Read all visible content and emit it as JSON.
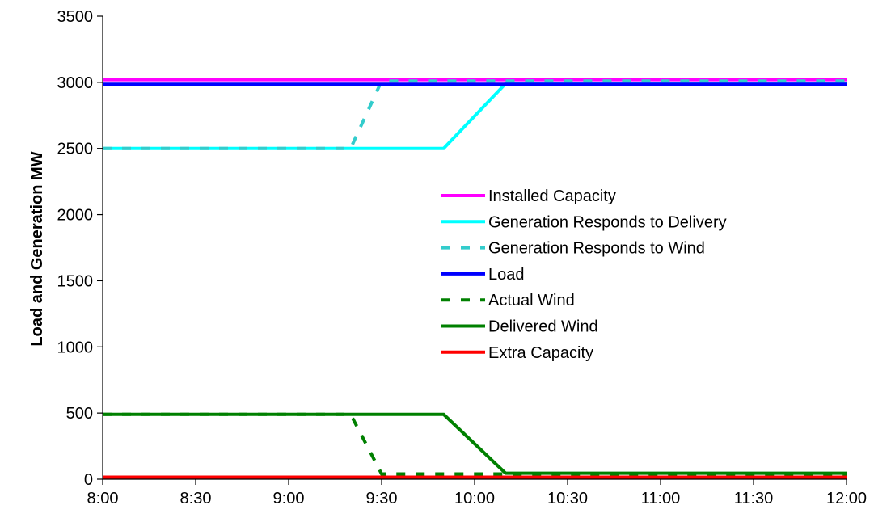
{
  "chart_data": {
    "type": "line",
    "title": "",
    "xlabel": "",
    "ylabel": "Load and Generation MW",
    "x_ticks": [
      "8:00",
      "8:30",
      "9:00",
      "9:30",
      "10:00",
      "10:30",
      "11:00",
      "11:30",
      "12:00"
    ],
    "x_range_minutes": [
      480,
      720
    ],
    "ylim": [
      0,
      3500
    ],
    "y_ticks": [
      0,
      500,
      1000,
      1500,
      2000,
      2500,
      3000,
      3500
    ],
    "grid": false,
    "legend_position": "center-right",
    "series": [
      {
        "name": "Installed Capacity",
        "color": "#ff00ff",
        "dash": "solid",
        "points": [
          [
            "8:00",
            3020
          ],
          [
            "12:00",
            3020
          ]
        ]
      },
      {
        "name": "Generation Responds to Delivery",
        "color": "#00ffff",
        "dash": "solid",
        "points": [
          [
            "8:00",
            2500
          ],
          [
            "9:50",
            2500
          ],
          [
            "10:10",
            2990
          ],
          [
            "12:00",
            2990
          ]
        ]
      },
      {
        "name": "Generation Responds to Wind",
        "color": "#33cccc",
        "dash": "dashed",
        "points": [
          [
            "8:00",
            2500
          ],
          [
            "9:20",
            2500
          ],
          [
            "9:30",
            3010
          ],
          [
            "12:00",
            3010
          ]
        ]
      },
      {
        "name": "Load",
        "color": "#0000ff",
        "dash": "solid",
        "points": [
          [
            "8:00",
            2985
          ],
          [
            "12:00",
            2985
          ]
        ]
      },
      {
        "name": "Actual Wind",
        "color": "#008000",
        "dash": "dashed",
        "points": [
          [
            "8:00",
            490
          ],
          [
            "9:20",
            490
          ],
          [
            "9:30",
            40
          ],
          [
            "12:00",
            40
          ]
        ]
      },
      {
        "name": "Delivered Wind",
        "color": "#008000",
        "dash": "solid",
        "points": [
          [
            "8:00",
            490
          ],
          [
            "9:50",
            490
          ],
          [
            "10:10",
            45
          ],
          [
            "12:00",
            45
          ]
        ]
      },
      {
        "name": "Extra Capacity",
        "color": "#ff0000",
        "dash": "solid",
        "points": [
          [
            "8:00",
            15
          ],
          [
            "12:00",
            15
          ]
        ]
      }
    ]
  }
}
